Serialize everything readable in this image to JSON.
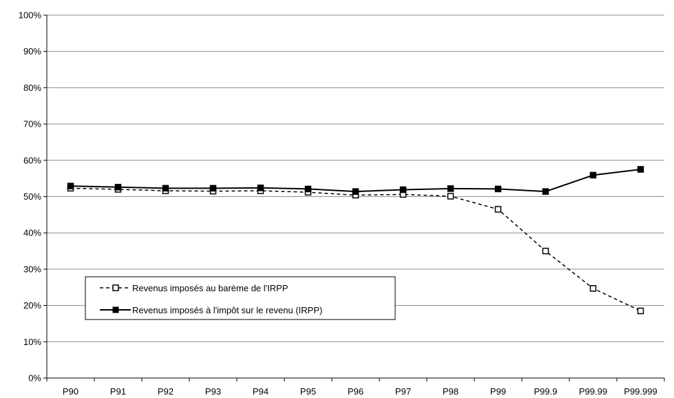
{
  "chart_data": {
    "type": "line",
    "categories": [
      "P90",
      "P91",
      "P92",
      "P93",
      "P94",
      "P95",
      "P96",
      "P97",
      "P98",
      "P99",
      "P99.9",
      "P99.99",
      "P99.999"
    ],
    "ylim": [
      0,
      100
    ],
    "yticks": [
      "0%",
      "10%",
      "20%",
      "30%",
      "40%",
      "50%",
      "60%",
      "70%",
      "80%",
      "90%",
      "100%"
    ],
    "grid": true,
    "legend_position": "lower-left",
    "series": [
      {
        "name": "Revenus imposés au barème de l'IRPP",
        "style": "dashed",
        "marker": "open-square",
        "color": "#000000",
        "values": [
          52.3,
          52.0,
          51.6,
          51.5,
          51.6,
          51.2,
          50.4,
          50.6,
          50.1,
          46.5,
          35.0,
          24.7,
          18.5
        ]
      },
      {
        "name": "Revenus imposés à l'impôt sur le revenu (IRPP)",
        "style": "solid",
        "marker": "filled-square",
        "color": "#000000",
        "values": [
          52.9,
          52.6,
          52.3,
          52.3,
          52.4,
          52.1,
          51.4,
          51.9,
          52.2,
          52.1,
          51.4,
          55.9,
          57.5
        ]
      }
    ]
  }
}
